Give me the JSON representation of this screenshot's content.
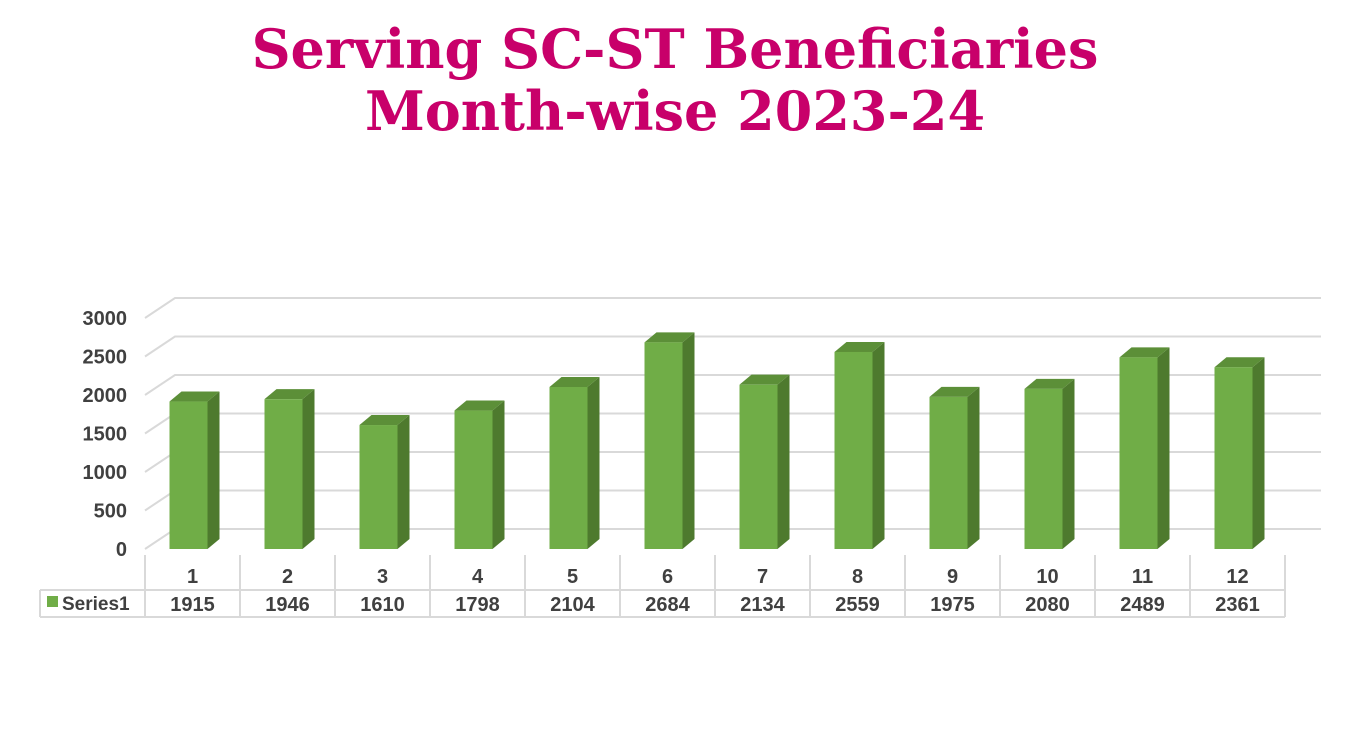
{
  "title": {
    "line1": "Serving SC-ST Beneficiaries",
    "line2": "Month-wise 2023-24"
  },
  "colors": {
    "title": "#c8006a",
    "bar_front": "#70ad47",
    "bar_side": "#4e7a2e",
    "bar_top": "#5c8f38",
    "grid": "#d9d9d9",
    "text": "#404040"
  },
  "chart_data": {
    "type": "bar",
    "style": "3d-column",
    "categories": [
      "1",
      "2",
      "3",
      "4",
      "5",
      "6",
      "7",
      "8",
      "9",
      "10",
      "11",
      "12"
    ],
    "series": [
      {
        "name": "Series1",
        "values": [
          1915,
          1946,
          1610,
          1798,
          2104,
          2684,
          2134,
          2559,
          1975,
          2080,
          2489,
          2361
        ]
      }
    ],
    "yticks": [
      "0",
      "500",
      "1000",
      "1500",
      "2000",
      "2500",
      "3000"
    ],
    "ylim": [
      0,
      3000
    ],
    "grid": true,
    "data_table": true,
    "legend": "data-table-left"
  }
}
